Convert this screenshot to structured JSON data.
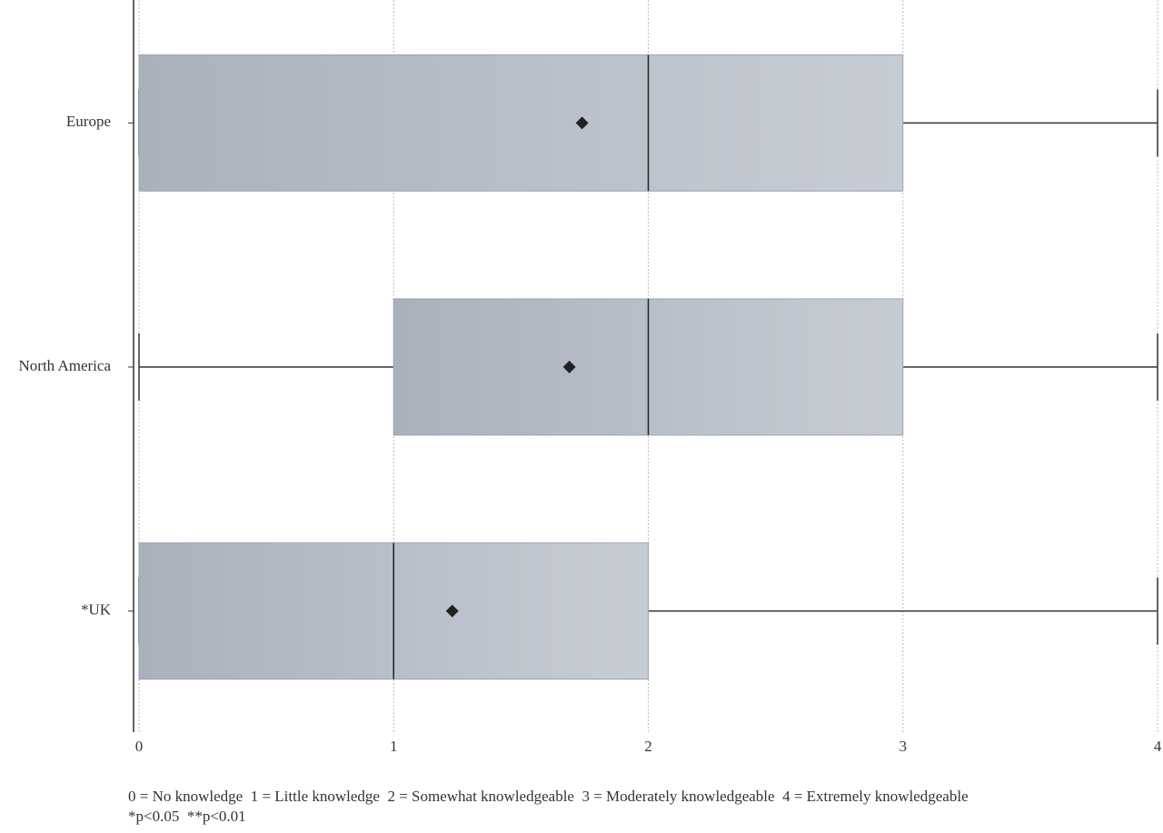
{
  "chart_data": {
    "type": "box",
    "orientation": "horizontal",
    "categories": [
      "Europe",
      "North America",
      "*UK"
    ],
    "boxes": [
      {
        "min": 0,
        "q1": 0,
        "median": 2,
        "q3": 3,
        "max": 4,
        "mean": 1.74
      },
      {
        "min": 0,
        "q1": 1,
        "median": 2,
        "q3": 3,
        "max": 4,
        "mean": 1.69
      },
      {
        "min": 0,
        "q1": 0,
        "median": 1,
        "q3": 2,
        "max": 4,
        "mean": 1.23
      }
    ],
    "color": "#b4bac6",
    "xlim": [
      0,
      4
    ],
    "xticks": [
      0,
      1,
      2,
      3,
      4
    ],
    "grid": true,
    "notes": [
      "0 = No knowledge  1 = Little knowledge  2 = Somewhat knowledgeable  3 = Moderately knowledgeable  4 = Extremely knowledgeable",
      "*p<0.05  **p<0.01"
    ]
  }
}
